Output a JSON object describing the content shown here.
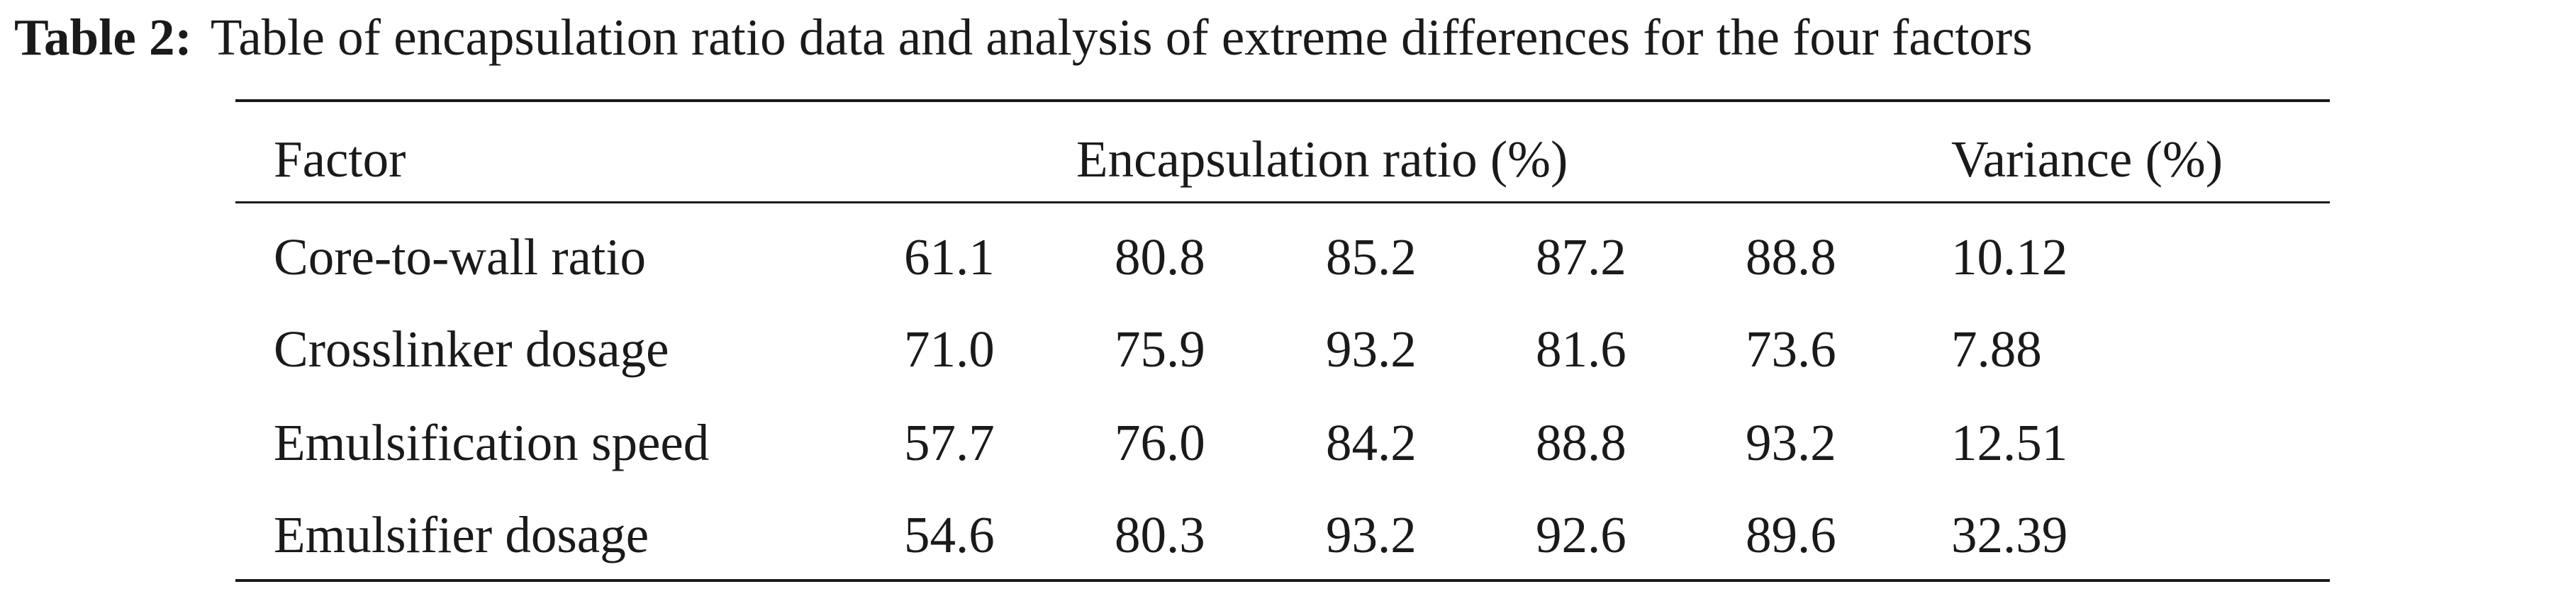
{
  "caption": {
    "label": "Table 2:",
    "text": "Table of encapsulation ratio data and analysis of extreme differences for the four factors"
  },
  "table": {
    "headers": {
      "factor": "Factor",
      "encapsulation": "Encapsulation ratio (%)",
      "variance": "Variance (%)"
    },
    "rows": [
      {
        "factor": "Core-to-wall ratio",
        "values": [
          "61.1",
          "80.8",
          "85.2",
          "87.2",
          "88.8"
        ],
        "variance": "10.12"
      },
      {
        "factor": "Crosslinker dosage",
        "values": [
          "71.0",
          "75.9",
          "93.2",
          "81.6",
          "73.6"
        ],
        "variance": "7.88"
      },
      {
        "factor": "Emulsification speed",
        "values": [
          "57.7",
          "76.0",
          "84.2",
          "88.8",
          "93.2"
        ],
        "variance": "12.51"
      },
      {
        "factor": "Emulsifier dosage",
        "values": [
          "54.6",
          "80.3",
          "93.2",
          "92.6",
          "89.6"
        ],
        "variance": "32.39"
      }
    ]
  }
}
